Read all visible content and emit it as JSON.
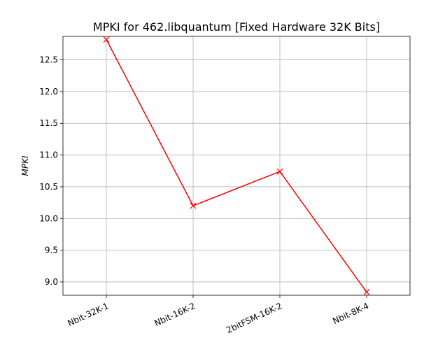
{
  "chart_data": {
    "type": "line",
    "title": "MPKI for 462.libquantum [Fixed Hardware 32K Bits]",
    "xlabel": "",
    "ylabel": "MPKI",
    "categories": [
      "Nbit-32K-1",
      "Nbit-16K-2",
      "2bitFSM-16K-2",
      "Nbit-8K-4"
    ],
    "series": [
      {
        "values": [
          12.82,
          10.2,
          10.74,
          8.84
        ],
        "color": "#ff0000",
        "marker": "x"
      }
    ],
    "ylim": [
      8.79,
      12.87
    ],
    "yticks": [
      9.0,
      9.5,
      10.0,
      10.5,
      11.0,
      11.5,
      12.0,
      12.5
    ],
    "ytick_labels": [
      "9.0",
      "9.5",
      "10.0",
      "10.5",
      "11.0",
      "11.5",
      "12.0",
      "12.5"
    ],
    "grid": true,
    "legend": "none"
  }
}
